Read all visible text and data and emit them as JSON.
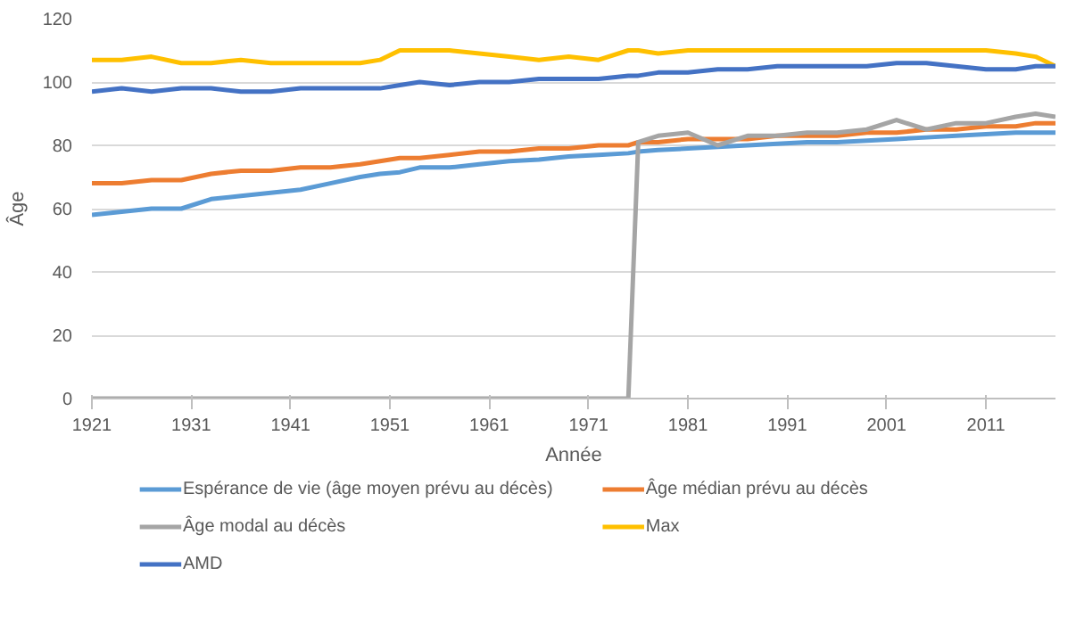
{
  "chart_data": {
    "type": "line",
    "xlabel": "Année",
    "ylabel": "Âge",
    "x": [
      1921,
      1924,
      1927,
      1930,
      1933,
      1936,
      1939,
      1942,
      1945,
      1948,
      1950,
      1952,
      1954,
      1957,
      1960,
      1963,
      1966,
      1969,
      1972,
      1975,
      1976,
      1978,
      1981,
      1984,
      1987,
      1990,
      1993,
      1996,
      1999,
      2002,
      2005,
      2008,
      2011,
      2014,
      2016,
      2018
    ],
    "xlim": [
      1921,
      2018
    ],
    "xticks": [
      1921,
      1931,
      1941,
      1951,
      1961,
      1971,
      1981,
      1991,
      2001,
      2011
    ],
    "ylim": [
      0,
      120
    ],
    "yticks": [
      0,
      20,
      40,
      60,
      80,
      100,
      120
    ],
    "grid": "y",
    "legend": "bottom",
    "series": [
      {
        "name": "Espérance de vie (âge moyen prévu au décès)",
        "color": "#5b9bd5",
        "values": [
          58,
          59,
          60,
          60,
          63,
          64,
          65,
          66,
          68,
          70,
          71,
          71.5,
          73,
          73,
          74,
          75,
          75.5,
          76.5,
          77,
          77.5,
          78,
          78.5,
          79,
          79.5,
          80,
          80.5,
          81,
          81,
          81.5,
          82,
          82.5,
          83,
          83.5,
          84,
          84,
          84
        ]
      },
      {
        "name": "Âge médian prévu au décès",
        "color": "#ed7d31",
        "values": [
          68,
          68,
          69,
          69,
          71,
          72,
          72,
          73,
          73,
          74,
          75,
          76,
          76,
          77,
          78,
          78,
          79,
          79,
          80,
          80,
          81,
          81,
          82,
          82,
          82,
          83,
          83,
          83,
          84,
          84,
          85,
          85,
          86,
          86,
          87,
          87
        ]
      },
      {
        "name": "Âge modal au décès",
        "color": "#a5a5a5",
        "values": [
          0,
          0,
          0,
          0,
          0,
          0,
          0,
          0,
          0,
          0,
          0,
          0,
          0,
          0,
          0,
          0,
          0,
          0,
          0,
          0,
          81,
          83,
          84,
          80,
          83,
          83,
          84,
          84,
          85,
          88,
          85,
          87,
          87,
          89,
          90,
          89
        ]
      },
      {
        "name": "Max",
        "color": "#ffc000",
        "values": [
          107,
          107,
          108,
          106,
          106,
          107,
          106,
          106,
          106,
          106,
          107,
          110,
          110,
          110,
          109,
          108,
          107,
          108,
          107,
          110,
          110,
          109,
          110,
          110,
          110,
          110,
          110,
          110,
          110,
          110,
          110,
          110,
          110,
          109,
          108,
          105
        ]
      },
      {
        "name": "AMD",
        "color": "#4472c4",
        "values": [
          97,
          98,
          97,
          98,
          98,
          97,
          97,
          98,
          98,
          98,
          98,
          99,
          100,
          99,
          100,
          100,
          101,
          101,
          101,
          102,
          102,
          103,
          103,
          104,
          104,
          105,
          105,
          105,
          105,
          106,
          106,
          105,
          104,
          104,
          105,
          105
        ]
      }
    ]
  }
}
